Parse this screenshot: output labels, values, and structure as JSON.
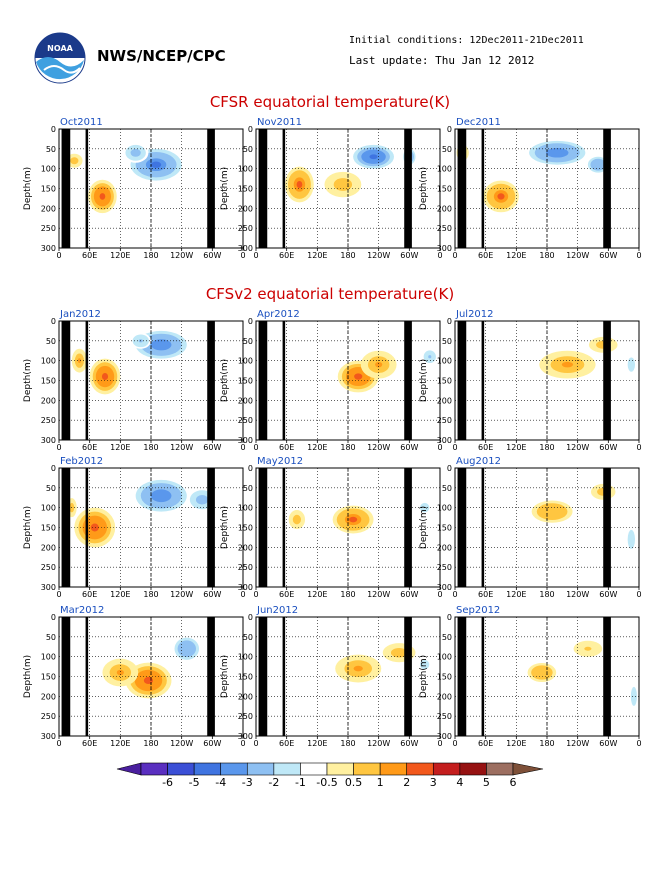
{
  "header": {
    "org": "NWS/NCEP/CPC",
    "initial_conditions": "Initial conditions: 12Dec2011-21Dec2011",
    "last_update": "Last update: Thu Jan 12 2012"
  },
  "sections": [
    {
      "title": "CFSR equatorial temperature(K)"
    },
    {
      "title": "CFSv2 equatorial temperature(K)"
    }
  ],
  "axis": {
    "ylabel": "Depth(m)",
    "yticks": [
      "0",
      "50",
      "100",
      "150",
      "200",
      "250",
      "300"
    ],
    "xticks": [
      "0",
      "60E",
      "120E",
      "180",
      "120W",
      "60W",
      "0"
    ],
    "xlim": [
      0,
      360
    ],
    "ylim": [
      0,
      300
    ]
  },
  "colorbar": {
    "labels": [
      "-6",
      "-5",
      "-4",
      "-3",
      "-2",
      "-1",
      "-0.5",
      "0.5",
      "1",
      "2",
      "3",
      "4",
      "5",
      "6"
    ],
    "colors": [
      "#5a2fc0",
      "#3b4fd6",
      "#3f74e0",
      "#5a97ec",
      "#8ec0f2",
      "#bfe8f7",
      "#ffffff",
      "#fff0a0",
      "#ffc640",
      "#ff9a18",
      "#f2581c",
      "#c41e1e",
      "#961212",
      "#9c6e60"
    ],
    "left_end_color": "#4a1f9e",
    "right_end_color": "#7e5038"
  },
  "chart_data": [
    {
      "type": "heatmap",
      "label": "Oct2011",
      "section": 0,
      "warm": [
        [
          85,
          170,
          28,
          42,
          3.2
        ],
        [
          30,
          80,
          20,
          22,
          1.5
        ]
      ],
      "cold": [
        [
          190,
          90,
          50,
          40,
          -3.2
        ],
        [
          150,
          60,
          25,
          25,
          -1.5
        ]
      ]
    },
    {
      "type": "heatmap",
      "label": "Nov2011",
      "section": 0,
      "warm": [
        [
          85,
          140,
          28,
          45,
          3.0
        ],
        [
          170,
          140,
          45,
          40,
          1.5
        ]
      ],
      "cold": [
        [
          230,
          70,
          40,
          30,
          -3.5
        ],
        [
          300,
          70,
          15,
          25,
          -2.0
        ]
      ]
    },
    {
      "type": "heatmap",
      "label": "Dec2011",
      "section": 0,
      "warm": [
        [
          90,
          170,
          35,
          40,
          3.0
        ],
        [
          15,
          60,
          15,
          25,
          1.5
        ]
      ],
      "cold": [
        [
          200,
          60,
          55,
          30,
          -3.0
        ],
        [
          280,
          90,
          25,
          25,
          -1.8
        ]
      ]
    },
    {
      "type": "heatmap",
      "label": "Jan2012",
      "section": 1,
      "warm": [
        [
          90,
          140,
          30,
          45,
          3.5
        ],
        [
          40,
          100,
          15,
          30,
          2.0
        ]
      ],
      "cold": [
        [
          200,
          60,
          50,
          35,
          -2.5
        ],
        [
          160,
          50,
          20,
          20,
          -1.2
        ]
      ]
    },
    {
      "type": "heatmap",
      "label": "Feb2012",
      "section": 1,
      "warm": [
        [
          70,
          150,
          40,
          50,
          3.2
        ],
        [
          25,
          100,
          12,
          30,
          1.5
        ]
      ],
      "cold": [
        [
          200,
          70,
          50,
          40,
          -2.5
        ],
        [
          280,
          80,
          30,
          30,
          -1.5
        ]
      ]
    },
    {
      "type": "heatmap",
      "label": "Mar2012",
      "section": 1,
      "warm": [
        [
          175,
          160,
          45,
          45,
          3.5
        ],
        [
          120,
          140,
          35,
          35,
          2.0
        ]
      ],
      "cold": [
        [
          250,
          80,
          30,
          35,
          -2.0
        ]
      ]
    },
    {
      "type": "heatmap",
      "label": "Apr2012",
      "section": 1,
      "warm": [
        [
          200,
          140,
          40,
          40,
          3.5
        ],
        [
          240,
          110,
          35,
          35,
          2.0
        ]
      ],
      "cold": [
        [
          340,
          90,
          15,
          20,
          -1.2
        ]
      ]
    },
    {
      "type": "heatmap",
      "label": "May2012",
      "section": 1,
      "warm": [
        [
          190,
          130,
          40,
          35,
          3.0
        ],
        [
          80,
          130,
          20,
          30,
          1.5
        ]
      ],
      "cold": [
        [
          330,
          100,
          15,
          20,
          -1.0
        ]
      ]
    },
    {
      "type": "heatmap",
      "label": "Jun2012",
      "section": 1,
      "warm": [
        [
          200,
          130,
          45,
          35,
          2.0
        ],
        [
          280,
          90,
          40,
          30,
          1.5
        ]
      ],
      "cold": [
        [
          330,
          120,
          15,
          20,
          -1.0
        ]
      ]
    },
    {
      "type": "heatmap",
      "label": "Jul2012",
      "section": 1,
      "warm": [
        [
          220,
          110,
          55,
          35,
          2.0
        ],
        [
          290,
          60,
          35,
          25,
          1.5
        ]
      ],
      "cold": [
        [
          345,
          110,
          12,
          30,
          -1.0
        ]
      ]
    },
    {
      "type": "heatmap",
      "label": "Aug2012",
      "section": 1,
      "warm": [
        [
          190,
          110,
          50,
          35,
          1.8
        ],
        [
          290,
          60,
          30,
          25,
          1.5
        ]
      ],
      "cold": [
        [
          345,
          180,
          12,
          40,
          -1.0
        ]
      ]
    },
    {
      "type": "heatmap",
      "label": "Sep2012",
      "section": 1,
      "warm": [
        [
          170,
          140,
          35,
          30,
          1.8
        ],
        [
          260,
          80,
          35,
          25,
          1.2
        ]
      ],
      "cold": [
        [
          350,
          200,
          10,
          40,
          -1.0
        ]
      ]
    }
  ]
}
